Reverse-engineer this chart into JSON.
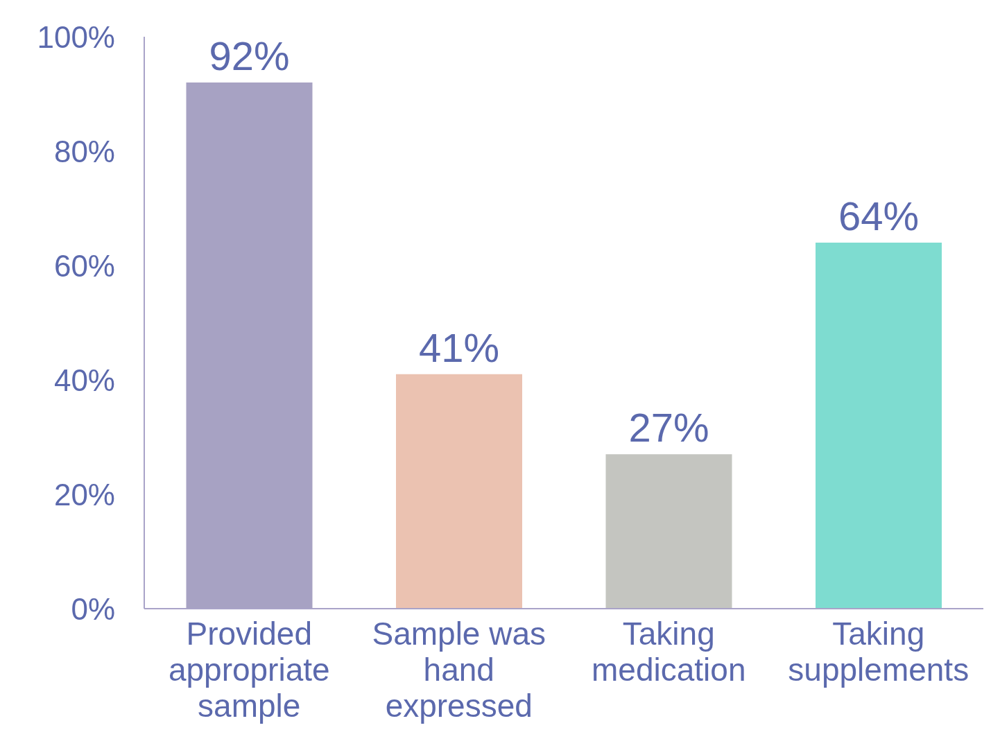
{
  "chart_data": {
    "type": "bar",
    "categories": [
      "Provided appropriate sample",
      "Sample was hand expressed",
      "Taking medication",
      "Taking supplements"
    ],
    "values": [
      92,
      41,
      27,
      64
    ],
    "colors": [
      "#a7a2c3",
      "#ebc2b1",
      "#c4c5c0",
      "#7edcd0"
    ],
    "value_labels": [
      "92%",
      "41%",
      "27%",
      "64%"
    ],
    "ylim": [
      0,
      100
    ],
    "yticks": [
      {
        "value": 0,
        "label": "0%"
      },
      {
        "value": 20,
        "label": "20%"
      },
      {
        "value": 40,
        "label": "40%"
      },
      {
        "value": 60,
        "label": "60%"
      },
      {
        "value": 80,
        "label": "80%"
      },
      {
        "value": 100,
        "label": "100%"
      }
    ],
    "grid": false,
    "legend": false
  }
}
